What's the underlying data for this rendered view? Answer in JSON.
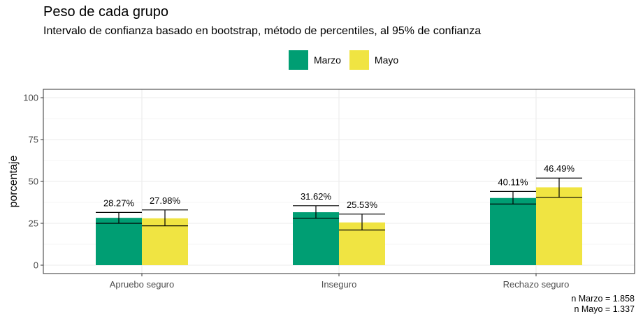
{
  "chart_data": {
    "type": "bar",
    "title": "Peso de cada grupo",
    "subtitle": "Intervalo de confianza basado en bootstrap, método de percentiles, al 95% de confianza",
    "xlabel": "",
    "ylabel": "porcentaje",
    "ylim": [
      0,
      100
    ],
    "yticks": [
      "0",
      "25",
      "50",
      "75",
      "100"
    ],
    "categories": [
      "Apruebo seguro",
      "Inseguro",
      "Rechazo seguro"
    ],
    "legend_position": "top",
    "grid": true,
    "series": [
      {
        "name": "Marzo",
        "color": "#009E73",
        "values": [
          28.27,
          31.62,
          40.11
        ],
        "labels": [
          "28.27%",
          "31.62%",
          "40.11%"
        ],
        "ci_low": [
          25,
          28,
          36.5
        ],
        "ci_high": [
          31.5,
          35.5,
          44
        ]
      },
      {
        "name": "Mayo",
        "color": "#F0E442",
        "values": [
          27.98,
          25.53,
          46.49
        ],
        "labels": [
          "27.98%",
          "25.53%",
          "46.49%"
        ],
        "ci_low": [
          23.5,
          21,
          40.5
        ],
        "ci_high": [
          33,
          30.5,
          52
        ]
      }
    ],
    "caption": [
      "n Marzo = 1.858",
      "n Mayo = 1.337"
    ]
  }
}
